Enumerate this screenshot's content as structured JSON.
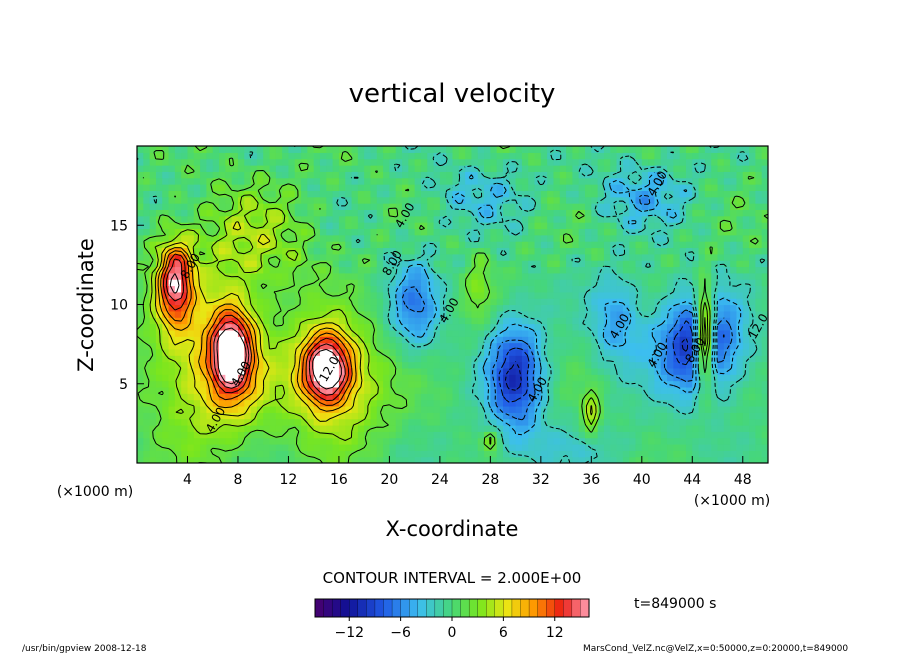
{
  "chart_data": {
    "type": "heatmap",
    "title": "vertical velocity",
    "xlabel": "X-coordinate",
    "ylabel": "Z-coordinate",
    "x_unit": "(×1000 m)",
    "y_unit": "(×1000 m)",
    "xlim": [
      0,
      50
    ],
    "ylim": [
      0,
      20
    ],
    "x_ticks": [
      4,
      8,
      12,
      16,
      20,
      24,
      28,
      32,
      36,
      40,
      44,
      48
    ],
    "y_ticks": [
      5,
      10,
      15
    ],
    "contour_interval_text": "CONTOUR INTERVAL = 2.000E+00",
    "contour_labels": [
      "8.00",
      "4.00",
      "4.00",
      "12.0",
      "8.00",
      "4.00",
      "4.00",
      "4.00",
      "4.00",
      "4.00",
      "8.00",
      "12.0",
      "4.00"
    ],
    "colorbar": {
      "min": -16,
      "max": 16,
      "step": 1,
      "tick_values": [
        -12,
        -6,
        0,
        6,
        12
      ],
      "tick_labels": [
        "−12",
        "−6",
        "0",
        "6",
        "12"
      ]
    },
    "features": [
      {
        "x": 3,
        "z": 11.5,
        "sx": 1.4,
        "sz": 2.6,
        "value": 14
      },
      {
        "x": 7.5,
        "z": 7.0,
        "sx": 1.6,
        "sz": 2.6,
        "value": 16
      },
      {
        "x": 15,
        "z": 6.0,
        "sx": 1.9,
        "sz": 2.2,
        "value": 16
      },
      {
        "x": 6,
        "z": 6,
        "sx": 5.0,
        "sz": 5.0,
        "value": 7
      },
      {
        "x": 16,
        "z": 5,
        "sx": 4.0,
        "sz": 4.0,
        "value": 6
      },
      {
        "x": 9,
        "z": 14,
        "sx": 5.0,
        "sz": 3.5,
        "value": 4
      },
      {
        "x": 22,
        "z": 10,
        "sx": 2.0,
        "sz": 3.0,
        "value": -6
      },
      {
        "x": 30,
        "z": 5.5,
        "sx": 2.2,
        "sz": 3.5,
        "value": -10
      },
      {
        "x": 44.5,
        "z": 7.5,
        "sx": 3.3,
        "sz": 3.2,
        "value": -11
      },
      {
        "x": 38,
        "z": 9,
        "sx": 2.0,
        "sz": 3.0,
        "value": -5
      },
      {
        "x": 45,
        "z": 8,
        "sx": 0.7,
        "sz": 3.0,
        "value": 17
      },
      {
        "x": 27,
        "z": 11,
        "sx": 1.0,
        "sz": 2.0,
        "value": 3
      },
      {
        "x": 28,
        "z": 1.5,
        "sx": 0.6,
        "sz": 0.6,
        "value": 6
      },
      {
        "x": 36,
        "z": 3,
        "sx": 0.6,
        "sz": 1.5,
        "value": 6
      },
      {
        "x": 27,
        "z": 17,
        "sx": 4.0,
        "sz": 2.0,
        "value": -3
      },
      {
        "x": 40,
        "z": 17,
        "sx": 4.0,
        "sz": 2.0,
        "value": -4
      },
      {
        "x": 34,
        "z": 1.0,
        "sx": 6.0,
        "sz": 1.5,
        "value": -2
      }
    ],
    "time_text": "t=849000 s"
  },
  "footer": {
    "left": "/usr/bin/gpview   2008-12-18",
    "right": "MarsCond_VelZ.nc@VelZ,x=0:50000,z=0:20000,t=849000"
  }
}
